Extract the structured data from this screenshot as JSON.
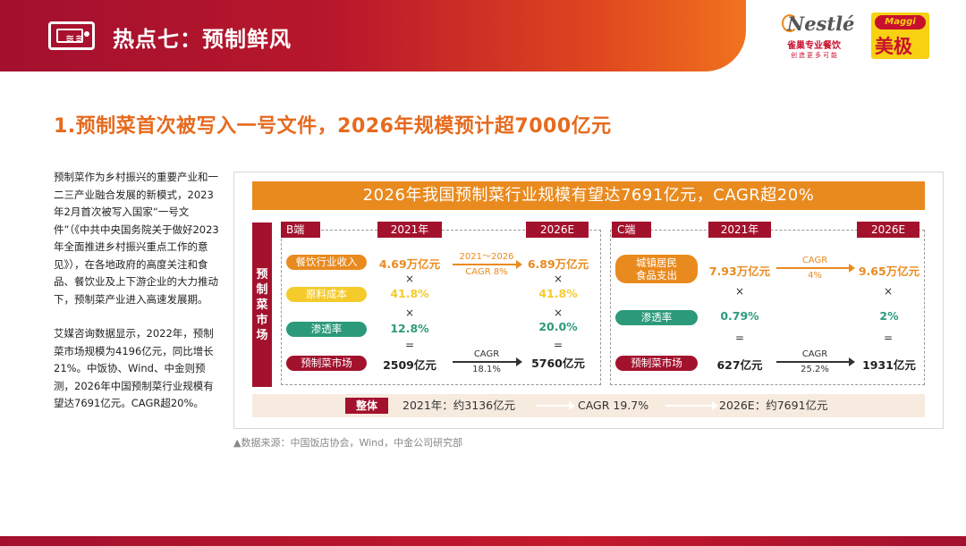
{
  "header": {
    "title": "热点七：预制鲜风",
    "icon": "microwave-icon"
  },
  "logos": {
    "nestle_word": "Nestlé",
    "nestle_cn": "雀巢专业餐饮",
    "nestle_tagline": "创造更多可能",
    "maggi_word": "Maggi",
    "maggi_cn": "美极"
  },
  "main_title": "1.预制菜首次被写入一号文件，2026年规模预计超7000亿元",
  "left_text": {
    "paragraph_1": "预制菜作为乡村振兴的重要产业和一二三产业融合发展的新模式，2023年2月首次被写入国家“一号文件”（《中共中央国务院关于做好2023年全面推进乡村振兴重点工作的意见》），在各地政府的高度关注和食品、餐饮业及上下游企业的大力推动下，预制菜产业进入高速发展期。",
    "paragraph_2": "艾媒咨询数据显示，2022年，预制菜市场规模为4196亿元，同比增长21%。中饭协、Wind、中金则预测，2026年中国预制菜行业规模有望达7691亿元。CAGR超20%。"
  },
  "panel": {
    "title": "2026年我国预制菜行业规模有望达7691亿元，CAGR超20%",
    "side_label": "预制菜市场",
    "b": {
      "label": "B端",
      "col_2021": "2021年",
      "col_2026": "2026E",
      "rows": {
        "revenue": {
          "label": "餐饮行业收入",
          "v2021": "4.69万亿元",
          "v2026": "6.89万亿元",
          "arrow_top": "2021～2026",
          "arrow_bottom": "CAGR 8%"
        },
        "cost": {
          "label": "原料成本",
          "v2021": "41.8%",
          "v2026": "41.8%"
        },
        "penetration": {
          "label": "渗透率",
          "v2021": "12.8%",
          "v2026": "20.0%"
        },
        "market": {
          "label": "预制菜市场",
          "v2021": "2509亿元",
          "v2026": "5760亿元",
          "arrow_top": "CAGR",
          "arrow_bottom": "18.1%"
        }
      }
    },
    "c": {
      "label": "C端",
      "col_2021": "2021年",
      "col_2026": "2026E",
      "rows": {
        "spending": {
          "label_line1": "城镇居民",
          "label_line2": "食品支出",
          "v2021": "7.93万亿元",
          "v2026": "9.65万亿元",
          "arrow_top": "CAGR",
          "arrow_bottom": "4%"
        },
        "penetration": {
          "label": "渗透率",
          "v2021": "0.79%",
          "v2026": "2%"
        },
        "market": {
          "label": "预制菜市场",
          "v2021": "627亿元",
          "v2026": "1931亿元",
          "arrow_top": "CAGR",
          "arrow_bottom": "25.2%"
        }
      }
    },
    "ops": {
      "times": "×",
      "equals": "="
    },
    "summary": {
      "badge": "整体",
      "v2021": "2021年：约3136亿元",
      "cagr": "CAGR 19.7%",
      "v2026": "2026E：约7691亿元"
    }
  },
  "source": "▲数据来源：中国饭店协会，Wind，中金公司研究部",
  "colors": {
    "brand_red": "#a3122d",
    "accent_orange": "#e98a1f",
    "yellow": "#f5cb2c",
    "green": "#2c9a7a"
  }
}
